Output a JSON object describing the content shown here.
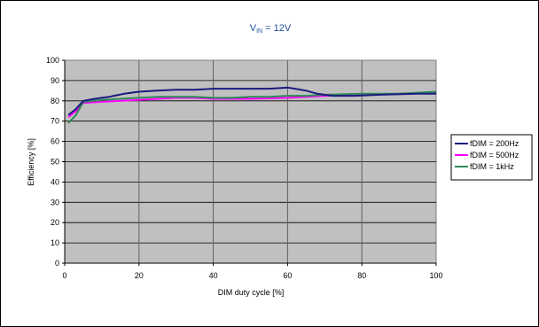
{
  "chart_data": {
    "type": "line",
    "title_main": "V",
    "title_sub": "IN",
    "title_rest": " = 12V",
    "xlabel": "DIM duty cycle  [%]",
    "ylabel": "Efficiency  [%]",
    "xlim": [
      0,
      100
    ],
    "ylim": [
      0,
      100
    ],
    "x_ticks": [
      "0",
      "20",
      "40",
      "60",
      "80",
      "100"
    ],
    "y_ticks": [
      "0",
      "10",
      "20",
      "30",
      "40",
      "50",
      "60",
      "70",
      "80",
      "90",
      "100"
    ],
    "grid": "vertical and horizontal",
    "legend_position": "right",
    "series": [
      {
        "name": "fDIM = 200Hz",
        "color": "#1a1a80",
        "x": [
          1,
          3,
          5,
          8,
          12,
          16,
          20,
          25,
          30,
          35,
          40,
          45,
          50,
          55,
          60,
          62,
          65,
          68,
          72,
          78,
          85,
          95,
          100
        ],
        "y": [
          73,
          76,
          80,
          81,
          82,
          83.5,
          84.5,
          85,
          85.5,
          85.5,
          86,
          86,
          86,
          86,
          86.5,
          86,
          85,
          83.5,
          82.5,
          82.5,
          83,
          83.5,
          83.5
        ]
      },
      {
        "name": "fDIM = 500Hz",
        "color": "#ff00ff",
        "x": [
          1,
          3,
          5,
          10,
          15,
          20,
          25,
          30,
          35,
          40,
          50,
          60,
          70,
          80,
          90,
          100
        ],
        "y": [
          72,
          75,
          79,
          79.5,
          80,
          80.5,
          81,
          81.5,
          81.5,
          81,
          81,
          81.5,
          82.5,
          83,
          83.5,
          84
        ]
      },
      {
        "name": "fDIM = 1kHz",
        "color": "#2e8b57",
        "x": [
          1,
          3,
          5,
          10,
          15,
          20,
          25,
          30,
          35,
          40,
          45,
          50,
          55,
          60,
          65,
          70,
          80,
          90,
          100
        ],
        "y": [
          69,
          73,
          79.5,
          80.5,
          81,
          81.5,
          82,
          82,
          82,
          81.5,
          81.5,
          82,
          82,
          82.5,
          82.5,
          83,
          83.5,
          83.5,
          84.5
        ]
      }
    ]
  }
}
